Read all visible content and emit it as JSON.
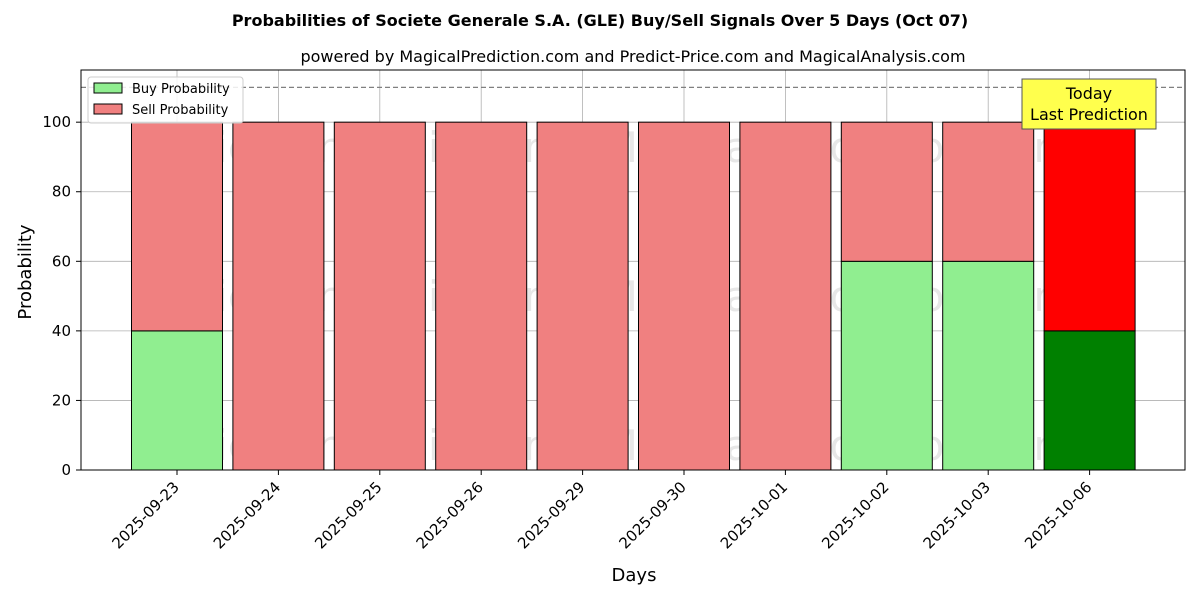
{
  "chart_data": {
    "type": "bar",
    "stacked": true,
    "title": "Probabilities of Societe Generale S.A. (GLE) Buy/Sell Signals Over 5 Days (Oct 07)",
    "subtitle": "powered by MagicalPrediction.com and Predict-Price.com and MagicalAnalysis.com",
    "xlabel": "Days",
    "ylabel": "Probability",
    "ylim": [
      0,
      115
    ],
    "yticks": [
      0,
      20,
      40,
      60,
      80,
      100
    ],
    "grid": true,
    "legend_position": "top-left",
    "reference_line": 110,
    "categories": [
      "2025-09-23",
      "2025-09-24",
      "2025-09-25",
      "2025-09-26",
      "2025-09-29",
      "2025-09-30",
      "2025-10-01",
      "2025-10-02",
      "2025-10-03",
      "2025-10-06"
    ],
    "series": [
      {
        "name": "Buy Probability",
        "values": [
          40,
          0,
          0,
          0,
          0,
          0,
          0,
          60,
          60,
          40
        ],
        "color": "#90ee90",
        "highlight_color": "#008000"
      },
      {
        "name": "Sell Probability",
        "values": [
          60,
          100,
          100,
          100,
          100,
          100,
          100,
          40,
          40,
          60
        ],
        "color": "#f08080",
        "highlight_color": "#ff0000"
      }
    ],
    "highlight_index": 9,
    "annotation": {
      "lines": [
        "Today",
        "Last Prediction"
      ],
      "bg": "#ffff4d"
    },
    "watermarks": [
      "MagicalAnalysis.com",
      "MagicalPrediction.com"
    ]
  }
}
